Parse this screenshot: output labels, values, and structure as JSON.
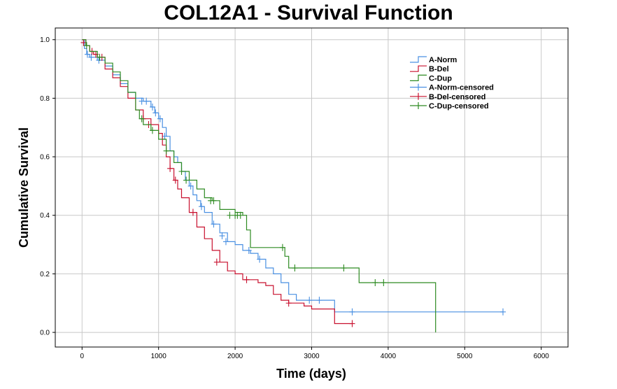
{
  "chart_data": {
    "type": "line",
    "subtype": "kaplan-meier",
    "title": "COL12A1 - Survival Function",
    "xlabel": "Time (days)",
    "ylabel": "Cumulative Survival",
    "xlim": [
      -350,
      6350
    ],
    "ylim": [
      -0.05,
      1.04
    ],
    "x_ticks": [
      0,
      1000,
      2000,
      3000,
      4000,
      5000,
      6000
    ],
    "y_ticks": [
      0.0,
      0.2,
      0.4,
      0.6,
      0.8,
      1.0
    ],
    "x_tick_labels": [
      "0",
      "1000",
      "2000",
      "3000",
      "4000",
      "5000",
      "6000"
    ],
    "y_tick_labels": [
      "0.0",
      "0.2",
      "0.4",
      "0.6",
      "0.8",
      "1.0"
    ],
    "grid": "vertical and horizontal at ticks",
    "legend_position": "top-right",
    "legend": [
      {
        "label": "A-Norm",
        "color": "#4a90e2",
        "kind": "step"
      },
      {
        "label": "B-Del",
        "color": "#c8102e",
        "kind": "step"
      },
      {
        "label": "C-Dup",
        "color": "#2e8b22",
        "kind": "step"
      },
      {
        "label": "A-Norm-censored",
        "color": "#4a90e2",
        "kind": "censor"
      },
      {
        "label": "B-Del-censored",
        "color": "#c8102e",
        "kind": "censor"
      },
      {
        "label": "C-Dup-censored",
        "color": "#2e8b22",
        "kind": "censor"
      }
    ],
    "series": [
      {
        "name": "A-Norm",
        "color": "#4a90e2",
        "x": [
          0,
          30,
          60,
          100,
          150,
          200,
          300,
          400,
          500,
          600,
          700,
          800,
          900,
          950,
          1000,
          1050,
          1100,
          1150,
          1200,
          1250,
          1300,
          1350,
          1400,
          1450,
          1500,
          1550,
          1600,
          1700,
          1800,
          1900,
          2000,
          2100,
          2200,
          2300,
          2400,
          2500,
          2600,
          2700,
          2800,
          3000,
          3300,
          5500
        ],
        "y": [
          1.0,
          0.97,
          0.95,
          0.94,
          0.94,
          0.93,
          0.91,
          0.88,
          0.85,
          0.82,
          0.8,
          0.79,
          0.77,
          0.75,
          0.73,
          0.7,
          0.67,
          0.62,
          0.6,
          0.58,
          0.55,
          0.52,
          0.5,
          0.47,
          0.45,
          0.43,
          0.41,
          0.37,
          0.34,
          0.31,
          0.3,
          0.28,
          0.27,
          0.25,
          0.22,
          0.2,
          0.17,
          0.13,
          0.11,
          0.11,
          0.07,
          0.07
        ],
        "censored": [
          {
            "x": 70,
            "y": 0.95
          },
          {
            "x": 120,
            "y": 0.94
          },
          {
            "x": 220,
            "y": 0.93
          },
          {
            "x": 780,
            "y": 0.79
          },
          {
            "x": 840,
            "y": 0.79
          },
          {
            "x": 920,
            "y": 0.77
          },
          {
            "x": 960,
            "y": 0.75
          },
          {
            "x": 1020,
            "y": 0.73
          },
          {
            "x": 1080,
            "y": 0.67
          },
          {
            "x": 1420,
            "y": 0.5
          },
          {
            "x": 1560,
            "y": 0.43
          },
          {
            "x": 1720,
            "y": 0.37
          },
          {
            "x": 1830,
            "y": 0.33
          },
          {
            "x": 1880,
            "y": 0.31
          },
          {
            "x": 2180,
            "y": 0.28
          },
          {
            "x": 2320,
            "y": 0.25
          },
          {
            "x": 2970,
            "y": 0.11
          },
          {
            "x": 3100,
            "y": 0.11
          },
          {
            "x": 3530,
            "y": 0.07
          },
          {
            "x": 5500,
            "y": 0.07
          }
        ]
      },
      {
        "name": "B-Del",
        "color": "#c8102e",
        "x": [
          0,
          50,
          100,
          150,
          200,
          300,
          400,
          500,
          600,
          700,
          800,
          900,
          1000,
          1050,
          1100,
          1150,
          1200,
          1250,
          1300,
          1400,
          1500,
          1600,
          1700,
          1800,
          1900,
          2000,
          2100,
          2200,
          2300,
          2400,
          2500,
          2600,
          2700,
          2900,
          3000,
          3300,
          3530
        ],
        "y": [
          1.0,
          0.98,
          0.96,
          0.95,
          0.94,
          0.9,
          0.87,
          0.84,
          0.8,
          0.76,
          0.73,
          0.71,
          0.68,
          0.64,
          0.6,
          0.56,
          0.52,
          0.49,
          0.46,
          0.41,
          0.36,
          0.32,
          0.28,
          0.24,
          0.21,
          0.2,
          0.18,
          0.18,
          0.17,
          0.16,
          0.13,
          0.11,
          0.1,
          0.09,
          0.08,
          0.03,
          0.03
        ],
        "censored": [
          {
            "x": 20,
            "y": 0.99
          },
          {
            "x": 130,
            "y": 0.96
          },
          {
            "x": 180,
            "y": 0.95
          },
          {
            "x": 260,
            "y": 0.94
          },
          {
            "x": 800,
            "y": 0.73
          },
          {
            "x": 870,
            "y": 0.71
          },
          {
            "x": 1150,
            "y": 0.56
          },
          {
            "x": 1220,
            "y": 0.52
          },
          {
            "x": 1450,
            "y": 0.41
          },
          {
            "x": 1760,
            "y": 0.24
          },
          {
            "x": 2150,
            "y": 0.18
          },
          {
            "x": 2700,
            "y": 0.1
          },
          {
            "x": 3530,
            "y": 0.03
          }
        ]
      },
      {
        "name": "C-Dup",
        "color": "#2e8b22",
        "x": [
          0,
          50,
          100,
          200,
          300,
          400,
          500,
          600,
          700,
          750,
          800,
          900,
          1000,
          1100,
          1200,
          1300,
          1400,
          1500,
          1600,
          1700,
          1800,
          2000,
          2100,
          2150,
          2200,
          2650,
          2700,
          3620,
          4620
        ],
        "y": [
          1.0,
          0.98,
          0.96,
          0.94,
          0.92,
          0.89,
          0.86,
          0.82,
          0.76,
          0.73,
          0.71,
          0.69,
          0.66,
          0.62,
          0.58,
          0.55,
          0.52,
          0.49,
          0.46,
          0.45,
          0.42,
          0.41,
          0.4,
          0.35,
          0.29,
          0.26,
          0.22,
          0.17,
          0.0
        ],
        "censored": [
          {
            "x": 60,
            "y": 0.98
          },
          {
            "x": 230,
            "y": 0.94
          },
          {
            "x": 780,
            "y": 0.73
          },
          {
            "x": 920,
            "y": 0.69
          },
          {
            "x": 1100,
            "y": 0.62
          },
          {
            "x": 1300,
            "y": 0.55
          },
          {
            "x": 1360,
            "y": 0.52
          },
          {
            "x": 1680,
            "y": 0.45
          },
          {
            "x": 1720,
            "y": 0.45
          },
          {
            "x": 1930,
            "y": 0.4
          },
          {
            "x": 2000,
            "y": 0.4
          },
          {
            "x": 2030,
            "y": 0.4
          },
          {
            "x": 2070,
            "y": 0.4
          },
          {
            "x": 2620,
            "y": 0.29
          },
          {
            "x": 2780,
            "y": 0.22
          },
          {
            "x": 3420,
            "y": 0.22
          },
          {
            "x": 3830,
            "y": 0.17
          },
          {
            "x": 3940,
            "y": 0.17
          }
        ]
      }
    ]
  }
}
